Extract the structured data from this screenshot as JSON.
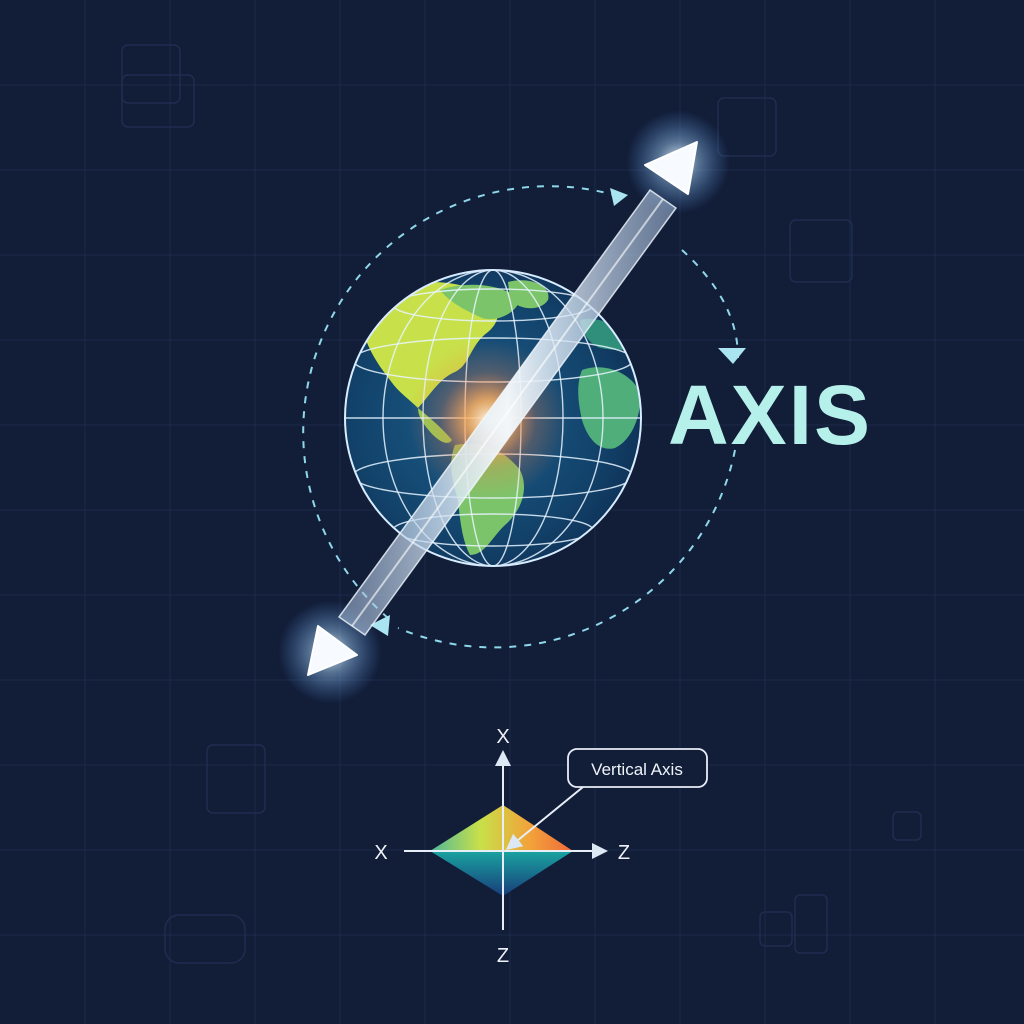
{
  "title": "AXIS",
  "callout": "Vertical Axis",
  "axes": {
    "top": "X",
    "left": "X",
    "right": "Z",
    "bottom": "Z"
  },
  "colors": {
    "background": "#121d38",
    "title": "#b6f0ea",
    "axis_rod": "#e6f4ff",
    "dashed_orbit": "#8fd7ea",
    "ocean": "#14507a",
    "land": "#5fb87a",
    "land_highlight": "#c8e04a",
    "glow": "#ff9a4a",
    "diamond_top": [
      "#c8e04a",
      "#f2a23a",
      "#ef6a3a"
    ],
    "diamond_bottom": [
      "#1aa3a0",
      "#14507a"
    ]
  },
  "icons": [
    "globe-icon",
    "axis-arrow-icon",
    "rotation-arrow-icon"
  ]
}
